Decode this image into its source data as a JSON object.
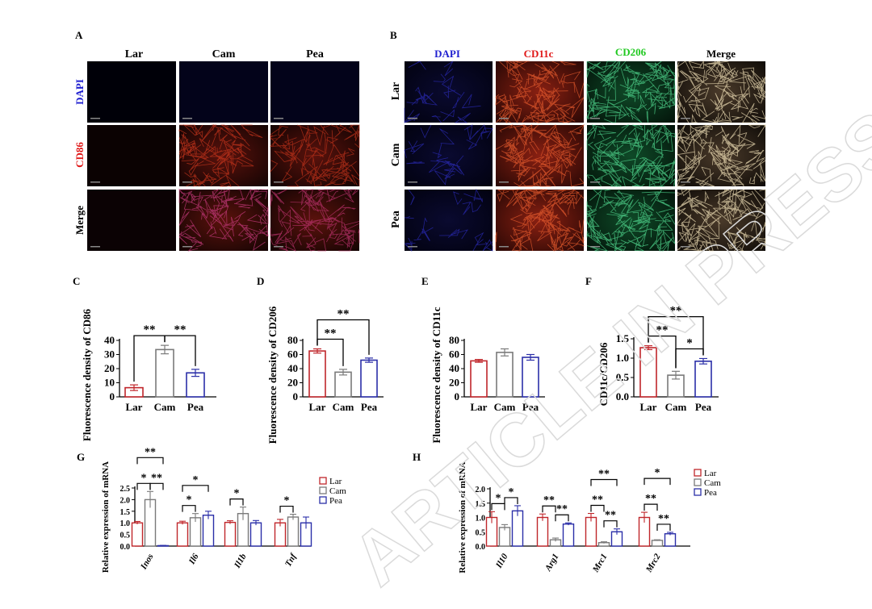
{
  "watermark": "ARTICLE IN PRESS",
  "panelA": {
    "letter": "A",
    "columns": [
      "Lar",
      "Cam",
      "Pea"
    ],
    "rows": [
      "DAPI",
      "CD86",
      "Merge"
    ],
    "row_colors": [
      "#1f1fd0",
      "#e01818",
      "#000000"
    ]
  },
  "panelB": {
    "letter": "B",
    "columns": [
      "DAPI",
      "CD11c",
      "CD206",
      "Merge"
    ],
    "column_colors": [
      "#1f1fd0",
      "#e01818",
      "#1fc81f",
      "#000000"
    ],
    "rows": [
      "Lar",
      "Cam",
      "Pea"
    ]
  },
  "chart_data": [
    {
      "panel": "C",
      "type": "bar",
      "categories": [
        "Lar",
        "Cam",
        "Pea"
      ],
      "values": [
        6.5,
        33.5,
        17
      ],
      "errors": [
        2,
        3,
        2.5
      ],
      "colors": [
        "#c0262b",
        "#7a7a7a",
        "#2b2fa8"
      ],
      "ylabel": "Fluorescence density of CD86",
      "ylim": [
        0,
        40
      ],
      "yticks": [
        "0",
        "10",
        "20",
        "30",
        "40"
      ],
      "significance": [
        {
          "from": 0,
          "to": 1,
          "label": "**"
        },
        {
          "from": 1,
          "to": 2,
          "label": "**"
        }
      ]
    },
    {
      "panel": "D",
      "type": "bar",
      "categories": [
        "Lar",
        "Cam",
        "Pea"
      ],
      "values": [
        65,
        35,
        52
      ],
      "errors": [
        3,
        4,
        3
      ],
      "colors": [
        "#c0262b",
        "#7a7a7a",
        "#2b2fa8"
      ],
      "ylabel": "Fluorescence density of CD206",
      "ylim": [
        0,
        80
      ],
      "yticks": [
        "0",
        "20",
        "40",
        "60",
        "80"
      ],
      "significance": [
        {
          "from": 0,
          "to": 1,
          "label": "**"
        },
        {
          "from": 0,
          "to": 2,
          "label": "**"
        }
      ]
    },
    {
      "panel": "E",
      "type": "bar",
      "categories": [
        "Lar",
        "Cam",
        "Pea"
      ],
      "values": [
        51,
        63,
        56
      ],
      "errors": [
        2,
        5,
        4
      ],
      "colors": [
        "#c0262b",
        "#7a7a7a",
        "#2b2fa8"
      ],
      "ylabel": "Fluorescence density of CD11c",
      "ylim": [
        0,
        80
      ],
      "yticks": [
        "0",
        "20",
        "40",
        "60",
        "80"
      ],
      "significance": []
    },
    {
      "panel": "F",
      "type": "bar",
      "categories": [
        "Lar",
        "Cam",
        "Pea"
      ],
      "values": [
        1.27,
        0.56,
        0.92
      ],
      "errors": [
        0.05,
        0.1,
        0.07
      ],
      "colors": [
        "#c0262b",
        "#7a7a7a",
        "#2b2fa8"
      ],
      "ylabel": "CD11c/CD206",
      "ylim": [
        0,
        1.5
      ],
      "yticks": [
        "0.0",
        "0.5",
        "1.0",
        "1.5"
      ],
      "significance": [
        {
          "from": 0,
          "to": 1,
          "label": "**"
        },
        {
          "from": 1,
          "to": 2,
          "label": "*"
        },
        {
          "from": 0,
          "to": 2,
          "label": "**"
        }
      ]
    },
    {
      "panel": "G",
      "type": "bar",
      "categories": [
        "Inos",
        "Il6",
        "Il1b",
        "Tnf"
      ],
      "series": [
        {
          "name": "Lar",
          "values": [
            1.0,
            1.0,
            1.02,
            1.0
          ],
          "errors": [
            0.06,
            0.07,
            0.07,
            0.15
          ]
        },
        {
          "name": "Cam",
          "values": [
            2.0,
            1.22,
            1.4,
            1.25
          ],
          "errors": [
            0.35,
            0.18,
            0.28,
            0.12
          ]
        },
        {
          "name": "Pea",
          "values": [
            0.02,
            1.33,
            1.0,
            1.0
          ],
          "errors": [
            0.01,
            0.17,
            0.1,
            0.25
          ]
        }
      ],
      "colors": [
        "#c0262b",
        "#7a7a7a",
        "#2b2fa8"
      ],
      "ylabel": "Relative expression of mRNA",
      "ylim": [
        0,
        2.5
      ],
      "yticks": [
        "0.0",
        "0.5",
        "1.0",
        "1.5",
        "2.0",
        "2.5"
      ],
      "legend": "top-right",
      "significance": [
        {
          "group": 0,
          "from": 0,
          "to": 1,
          "label": "*"
        },
        {
          "group": 0,
          "from": 1,
          "to": 2,
          "label": "**"
        },
        {
          "group": 0,
          "from": 0,
          "to": 2,
          "label": "**"
        },
        {
          "group": 1,
          "from": 0,
          "to": 1,
          "label": "*"
        },
        {
          "group": 1,
          "from": 0,
          "to": 2,
          "label": "*"
        },
        {
          "group": 2,
          "from": 0,
          "to": 1,
          "label": "*"
        },
        {
          "group": 3,
          "from": 0,
          "to": 1,
          "label": "*"
        }
      ]
    },
    {
      "panel": "H",
      "type": "bar",
      "categories": [
        "Il10",
        "Arg1",
        "Mrc1",
        "Mrc2"
      ],
      "series": [
        {
          "name": "Lar",
          "values": [
            1.0,
            1.0,
            1.0,
            1.0
          ],
          "errors": [
            0.2,
            0.12,
            0.14,
            0.18
          ]
        },
        {
          "name": "Cam",
          "values": [
            0.65,
            0.22,
            0.12,
            0.2
          ],
          "errors": [
            0.1,
            0.06,
            0.03,
            0.02
          ]
        },
        {
          "name": "Pea",
          "values": [
            1.23,
            0.77,
            0.5,
            0.43
          ],
          "errors": [
            0.18,
            0.04,
            0.1,
            0.05
          ]
        }
      ],
      "colors": [
        "#c0262b",
        "#7a7a7a",
        "#2b2fa8"
      ],
      "ylabel": "Relative expression of mRNA",
      "ylim": [
        0,
        2.0
      ],
      "yticks": [
        "0.0",
        "0.5",
        "1.0",
        "1.5",
        "2.0"
      ],
      "legend": "top-right",
      "significance": [
        {
          "group": 0,
          "from": 0,
          "to": 1,
          "label": "*"
        },
        {
          "group": 0,
          "from": 1,
          "to": 2,
          "label": "*"
        },
        {
          "group": 1,
          "from": 0,
          "to": 1,
          "label": "**"
        },
        {
          "group": 1,
          "from": 1,
          "to": 2,
          "label": "**"
        },
        {
          "group": 2,
          "from": 0,
          "to": 1,
          "label": "**"
        },
        {
          "group": 2,
          "from": 1,
          "to": 2,
          "label": "**"
        },
        {
          "group": 2,
          "from": 0,
          "to": 2,
          "label": "**"
        },
        {
          "group": 3,
          "from": 0,
          "to": 1,
          "label": "**"
        },
        {
          "group": 3,
          "from": 1,
          "to": 2,
          "label": "**"
        },
        {
          "group": 3,
          "from": 0,
          "to": 2,
          "label": "*"
        }
      ]
    }
  ]
}
